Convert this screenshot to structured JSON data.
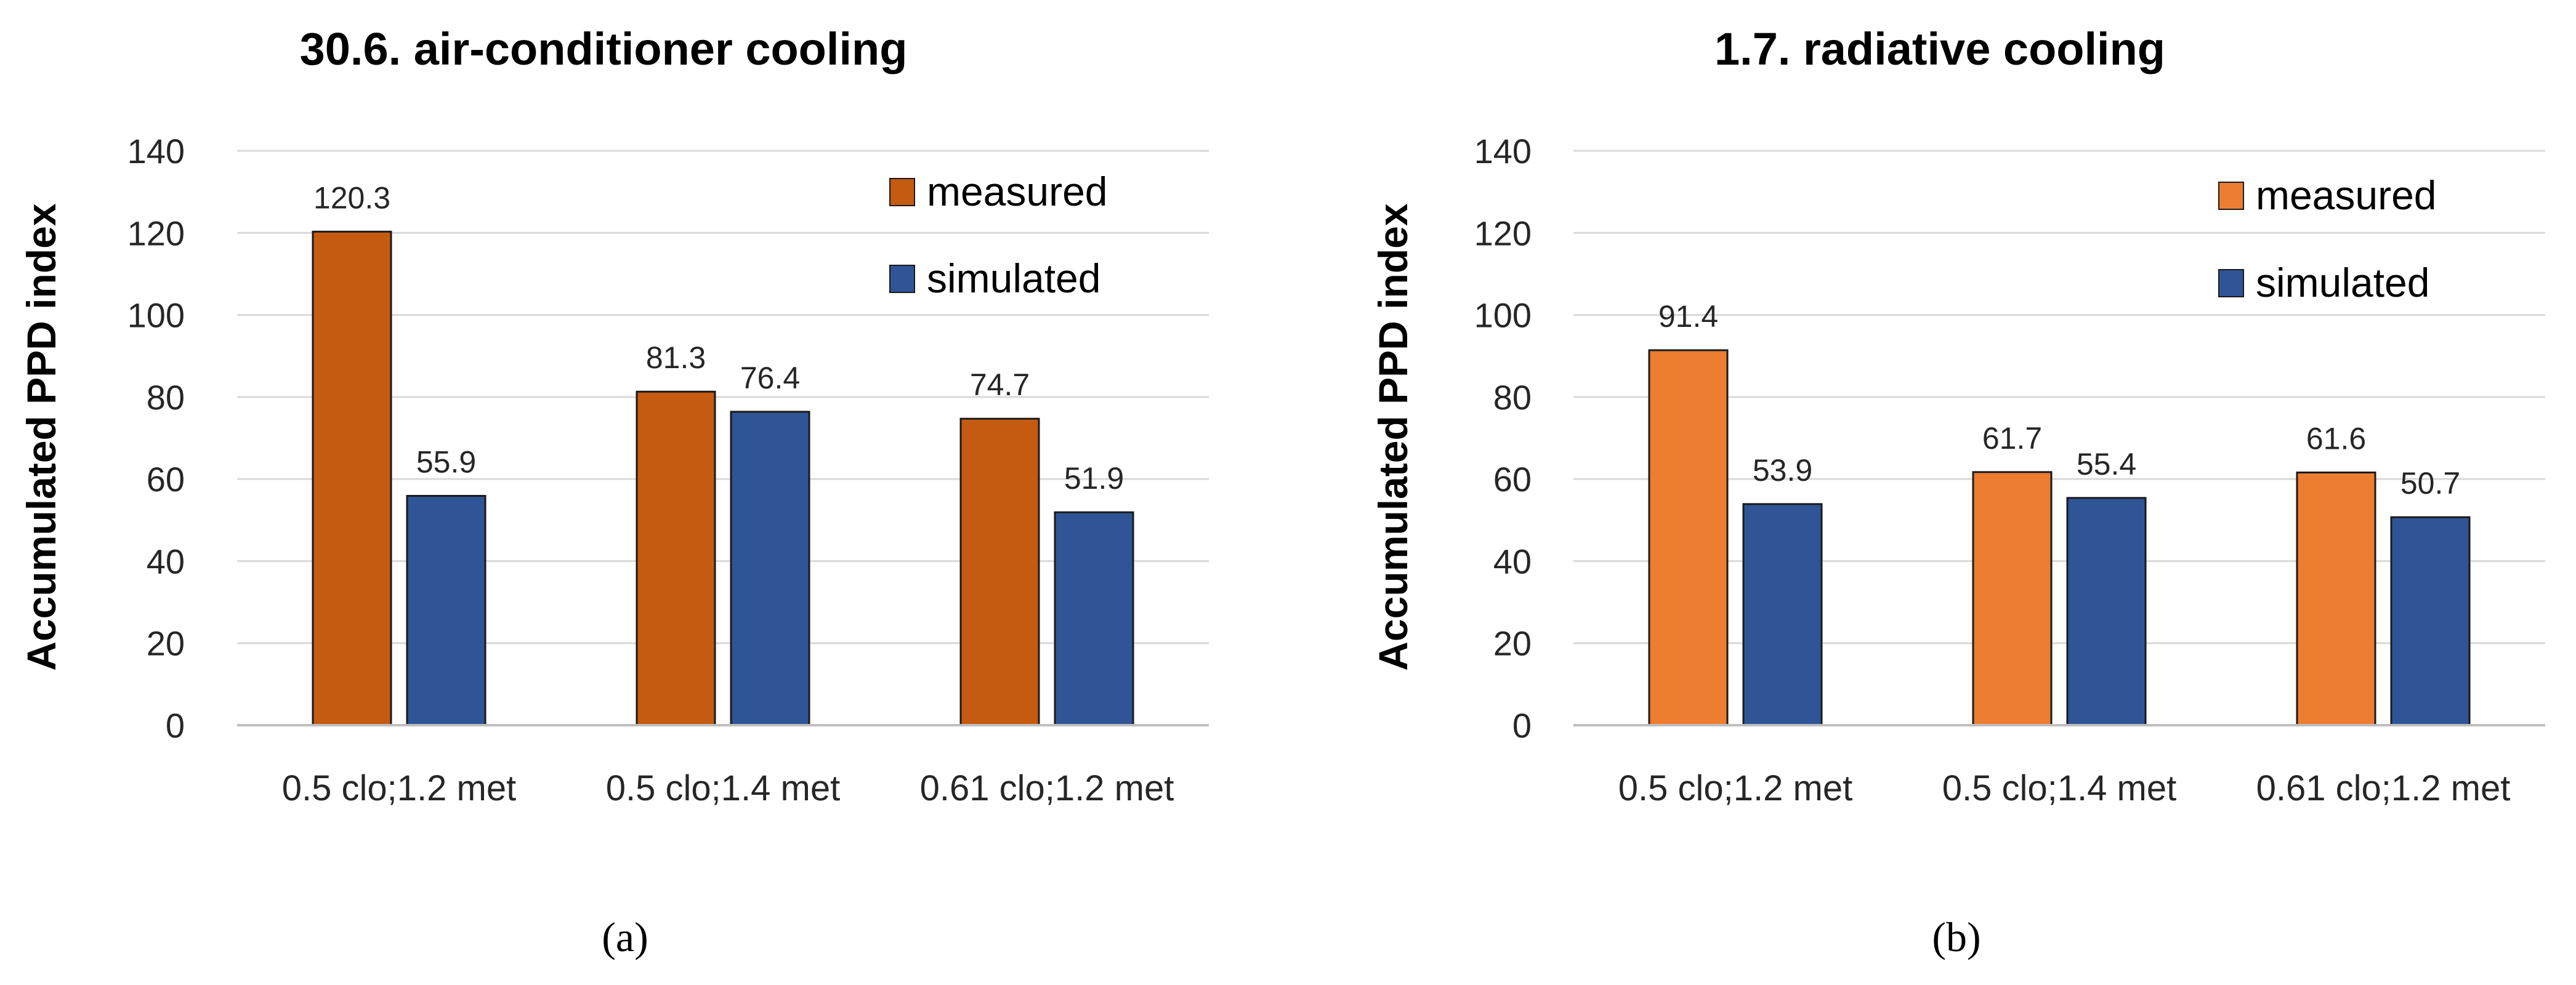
{
  "chart_data": [
    {
      "type": "bar",
      "title": "30.6. air-conditioner cooling",
      "panel_label": "(a)",
      "xlabel": "",
      "ylabel": "Accumulated PPD index",
      "ylim": [
        0,
        140
      ],
      "yticks": [
        0,
        20,
        40,
        60,
        80,
        100,
        120,
        140
      ],
      "grid": true,
      "legend_position": "top-right",
      "categories": [
        "0.5 clo;1.2 met",
        "0.5 clo;1.4 met",
        "0.61 clo;1.2 met"
      ],
      "series": [
        {
          "name": "measured",
          "color": "#C55A11",
          "values": [
            120.3,
            81.3,
            74.7
          ]
        },
        {
          "name": "simulated",
          "color": "#2F5597",
          "values": [
            55.9,
            76.4,
            51.9
          ]
        }
      ]
    },
    {
      "type": "bar",
      "title": "1.7. radiative cooling",
      "panel_label": "(b)",
      "xlabel": "",
      "ylabel": "Accumulated PPD index",
      "ylim": [
        0,
        140
      ],
      "yticks": [
        0,
        20,
        40,
        60,
        80,
        100,
        120,
        140
      ],
      "grid": true,
      "legend_position": "top-right",
      "categories": [
        "0.5 clo;1.2 met",
        "0.5 clo;1.4 met",
        "0.61 clo;1.2 met"
      ],
      "series": [
        {
          "name": "measured",
          "color": "#ED7D31",
          "values": [
            91.4,
            61.7,
            61.6
          ]
        },
        {
          "name": "simulated",
          "color": "#2F5597",
          "values": [
            53.9,
            55.4,
            50.7
          ]
        }
      ]
    }
  ]
}
